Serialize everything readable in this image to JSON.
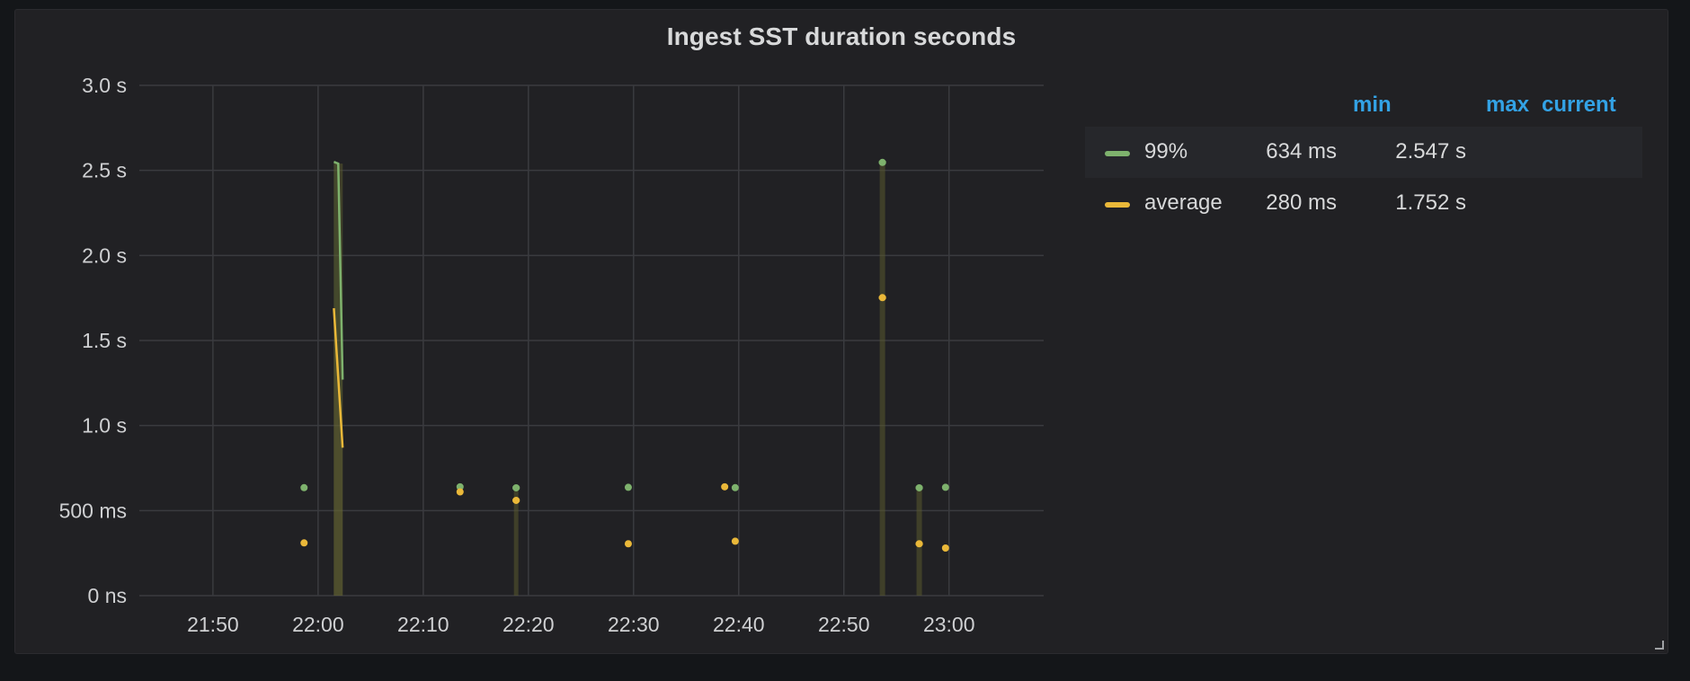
{
  "panel": {
    "title": "Ingest SST duration seconds"
  },
  "legend": {
    "headers": {
      "min": "min",
      "max": "max",
      "current": "current"
    },
    "rows": [
      {
        "name": "99%",
        "color": "#7eb26d",
        "min": "634 ms",
        "max": "2.547 s",
        "current": ""
      },
      {
        "name": "average",
        "color": "#eab839",
        "min": "280 ms",
        "max": "1.752 s",
        "current": ""
      }
    ]
  },
  "chart_data": {
    "type": "line",
    "title": "Ingest SST duration seconds",
    "x_unit": "time",
    "xlim": [
      "21:43",
      "23:09"
    ],
    "ylim": [
      0,
      3.0
    ],
    "x_ticks": [
      "21:50",
      "22:00",
      "22:10",
      "22:20",
      "22:30",
      "22:40",
      "22:50",
      "23:00"
    ],
    "y_ticks": [
      {
        "value": 0,
        "label": "0 ns"
      },
      {
        "value": 0.5,
        "label": "500 ms"
      },
      {
        "value": 1.0,
        "label": "1.0 s"
      },
      {
        "value": 1.5,
        "label": "1.5 s"
      },
      {
        "value": 2.0,
        "label": "2.0 s"
      },
      {
        "value": 2.5,
        "label": "2.5 s"
      },
      {
        "value": 3.0,
        "label": "3.0 s"
      }
    ],
    "grid": true,
    "legend_position": "right",
    "series": [
      {
        "name": "99%",
        "color": "#7eb26d",
        "segments": [
          [
            [
              "21:58:40",
              0.635
            ]
          ],
          [
            [
              "22:01:30",
              2.55
            ],
            [
              "22:01:55",
              2.54
            ],
            [
              "22:02:20",
              1.27
            ]
          ],
          [
            [
              "22:13:30",
              0.64
            ]
          ],
          [
            [
              "22:18:50",
              0.634
            ]
          ],
          [
            [
              "22:29:30",
              0.637
            ]
          ],
          [
            [
              "22:39:40",
              0.635
            ]
          ],
          [
            [
              "22:53:40",
              2.547
            ]
          ],
          [
            [
              "22:57:10",
              0.634
            ]
          ],
          [
            [
              "22:59:40",
              0.637
            ]
          ]
        ]
      },
      {
        "name": "average",
        "color": "#eab839",
        "segments": [
          [
            [
              "21:58:40",
              0.31
            ]
          ],
          [
            [
              "22:01:30",
              1.69
            ],
            [
              "22:02:20",
              0.87
            ]
          ],
          [
            [
              "22:13:30",
              0.61
            ]
          ],
          [
            [
              "22:18:50",
              0.56
            ]
          ],
          [
            [
              "22:29:30",
              0.305
            ]
          ],
          [
            [
              "22:38:40",
              0.64
            ]
          ],
          [
            [
              "22:39:40",
              0.32
            ]
          ],
          [
            [
              "22:53:40",
              1.752
            ]
          ],
          [
            [
              "22:57:10",
              0.305
            ]
          ],
          [
            [
              "22:59:40",
              0.28
            ]
          ]
        ]
      }
    ]
  }
}
